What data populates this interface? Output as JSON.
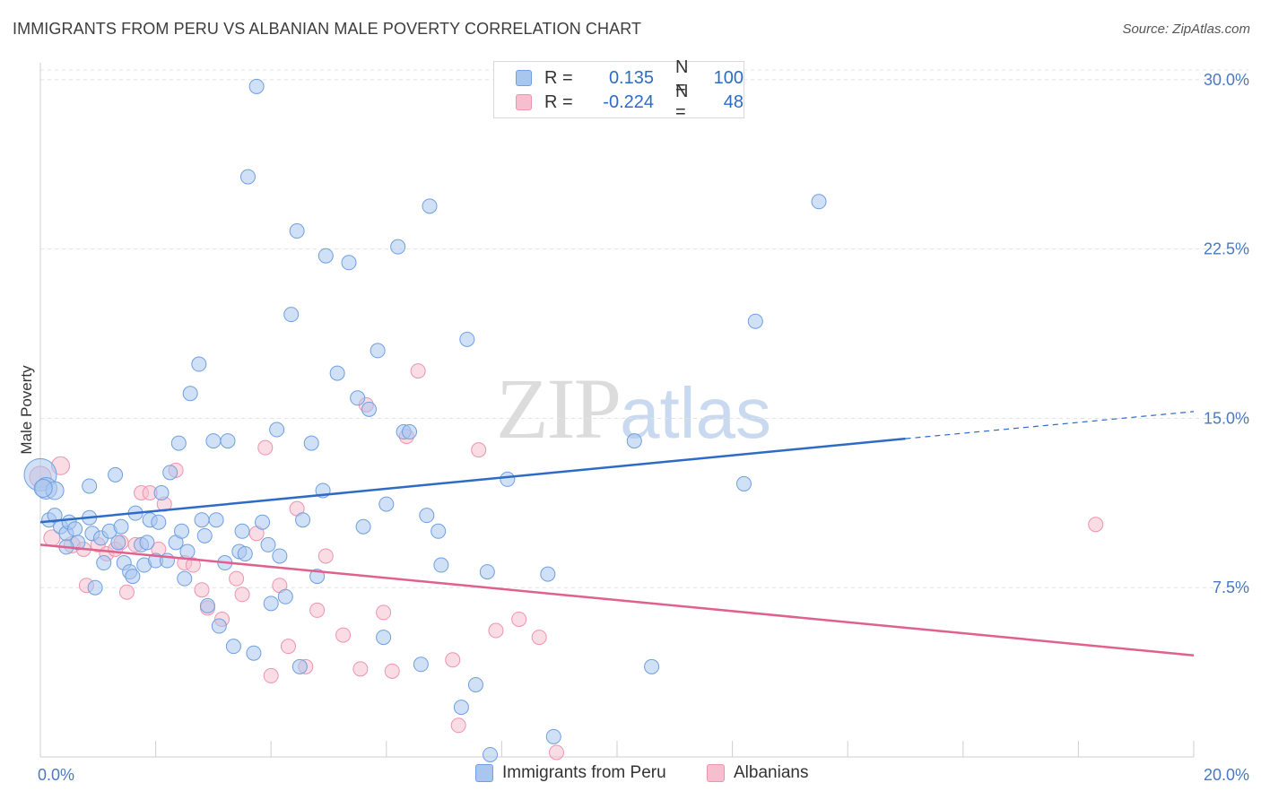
{
  "title": "IMMIGRANTS FROM PERU VS ALBANIAN MALE POVERTY CORRELATION CHART",
  "source": "Source: ZipAtlas.com",
  "watermark": {
    "zip": "ZIP",
    "atlas": "atlas"
  },
  "colors": {
    "peru_fill": "#a9c6ee",
    "peru_stroke": "#6f9fe0",
    "peru_line": "#2e6bc6",
    "alb_fill": "#f6bfd0",
    "alb_stroke": "#ee93b0",
    "alb_line": "#e0608e",
    "grid": "#e3e3e3",
    "tick_label": "#4a78c2"
  },
  "legend": {
    "rows": [
      {
        "r_label": "R =",
        "r_value": "0.135",
        "n_label": "N =",
        "n_value": "100"
      },
      {
        "r_label": "R =",
        "r_value": "-0.224",
        "n_label": "N =",
        "n_value": "48"
      }
    ]
  },
  "bottom_legend": [
    "Immigrants from Peru",
    "Albanians"
  ],
  "chart_data": {
    "type": "scatter",
    "title": "IMMIGRANTS FROM PERU VS ALBANIAN MALE POVERTY CORRELATION CHART",
    "xlabel": "",
    "ylabel": "Male Poverty",
    "xlim": [
      0,
      20
    ],
    "ylim": [
      0,
      30.75
    ],
    "x_tick_labels": [
      "0.0%",
      "20.0%"
    ],
    "y_ticks": [
      7.5,
      15.0,
      22.5,
      30.0
    ],
    "y_tick_labels": [
      "7.5%",
      "15.0%",
      "22.5%",
      "30.0%"
    ],
    "grid": "horizontal dashed",
    "legend_position": "top-center",
    "series": [
      {
        "name": "Immigrants from Peru",
        "trend": {
          "x": [
            0,
            15
          ],
          "y": [
            10.4,
            14.1
          ],
          "dashed_extension": {
            "x": [
              15,
              20
            ],
            "y": [
              14.1,
              15.3
            ]
          }
        },
        "points": [
          [
            0.0,
            12.5,
            18
          ],
          [
            0.1,
            11.9,
            12
          ],
          [
            0.25,
            11.8,
            10
          ],
          [
            0.15,
            10.5,
            8
          ],
          [
            0.25,
            10.7,
            8
          ],
          [
            0.35,
            10.2,
            8
          ],
          [
            0.45,
            9.9,
            8
          ],
          [
            0.5,
            10.4,
            8
          ],
          [
            0.6,
            10.1,
            8
          ],
          [
            0.65,
            9.5,
            8
          ],
          [
            0.45,
            9.3,
            8
          ],
          [
            0.85,
            10.6,
            8
          ],
          [
            0.9,
            9.9,
            8
          ],
          [
            0.85,
            12.0,
            8
          ],
          [
            0.95,
            7.5,
            8
          ],
          [
            1.05,
            9.7,
            8
          ],
          [
            1.1,
            8.6,
            8
          ],
          [
            1.2,
            10.0,
            8
          ],
          [
            1.3,
            12.5,
            8
          ],
          [
            1.35,
            9.5,
            8
          ],
          [
            1.4,
            10.2,
            8
          ],
          [
            1.45,
            8.6,
            8
          ],
          [
            1.55,
            8.2,
            8
          ],
          [
            1.6,
            8.0,
            8
          ],
          [
            1.65,
            10.8,
            8
          ],
          [
            1.75,
            9.4,
            8
          ],
          [
            1.8,
            8.5,
            8
          ],
          [
            1.85,
            9.5,
            8
          ],
          [
            1.9,
            10.5,
            8
          ],
          [
            2.0,
            8.7,
            8
          ],
          [
            2.05,
            10.4,
            8
          ],
          [
            2.1,
            11.7,
            8
          ],
          [
            2.2,
            8.7,
            8
          ],
          [
            2.25,
            12.6,
            8
          ],
          [
            2.35,
            9.5,
            8
          ],
          [
            2.4,
            13.9,
            8
          ],
          [
            2.45,
            10.0,
            8
          ],
          [
            2.5,
            7.9,
            8
          ],
          [
            2.55,
            9.1,
            8
          ],
          [
            2.6,
            16.1,
            8
          ],
          [
            2.75,
            17.4,
            8
          ],
          [
            2.8,
            10.5,
            8
          ],
          [
            2.85,
            9.8,
            8
          ],
          [
            2.9,
            6.7,
            8
          ],
          [
            3.0,
            14.0,
            8
          ],
          [
            3.05,
            10.5,
            8
          ],
          [
            3.1,
            5.8,
            8
          ],
          [
            3.2,
            8.6,
            8
          ],
          [
            3.25,
            14.0,
            8
          ],
          [
            3.35,
            4.9,
            8
          ],
          [
            3.45,
            9.1,
            8
          ],
          [
            3.5,
            10.0,
            8
          ],
          [
            3.55,
            9.0,
            8
          ],
          [
            3.6,
            25.7,
            8
          ],
          [
            3.7,
            4.6,
            8
          ],
          [
            3.75,
            29.7,
            8
          ],
          [
            3.85,
            10.4,
            8
          ],
          [
            3.95,
            9.4,
            8
          ],
          [
            4.0,
            6.8,
            8
          ],
          [
            4.1,
            14.5,
            8
          ],
          [
            4.15,
            8.9,
            8
          ],
          [
            4.25,
            7.1,
            8
          ],
          [
            4.35,
            19.6,
            8
          ],
          [
            4.45,
            23.3,
            8
          ],
          [
            4.5,
            4.0,
            8
          ],
          [
            4.55,
            10.5,
            8
          ],
          [
            4.7,
            13.9,
            8
          ],
          [
            4.8,
            8.0,
            8
          ],
          [
            4.9,
            11.8,
            8
          ],
          [
            4.95,
            22.2,
            8
          ],
          [
            5.15,
            17.0,
            8
          ],
          [
            5.35,
            21.9,
            8
          ],
          [
            5.5,
            15.9,
            8
          ],
          [
            5.6,
            10.2,
            8
          ],
          [
            5.7,
            15.4,
            8
          ],
          [
            5.85,
            18.0,
            8
          ],
          [
            5.95,
            5.3,
            8
          ],
          [
            6.0,
            11.2,
            8
          ],
          [
            6.2,
            22.6,
            8
          ],
          [
            6.3,
            14.4,
            8
          ],
          [
            6.4,
            14.4,
            8
          ],
          [
            6.6,
            4.1,
            8
          ],
          [
            6.7,
            10.7,
            8
          ],
          [
            6.75,
            24.4,
            8
          ],
          [
            6.9,
            10.0,
            8
          ],
          [
            6.95,
            8.5,
            8
          ],
          [
            7.3,
            2.2,
            8
          ],
          [
            7.4,
            18.5,
            8
          ],
          [
            7.55,
            3.2,
            8
          ],
          [
            7.75,
            8.2,
            8
          ],
          [
            7.8,
            0.1,
            8
          ],
          [
            8.1,
            12.3,
            8
          ],
          [
            8.8,
            8.1,
            8
          ],
          [
            8.9,
            0.9,
            8
          ],
          [
            10.3,
            14.0,
            8
          ],
          [
            10.6,
            4.0,
            8
          ],
          [
            12.2,
            12.1,
            8
          ],
          [
            12.4,
            19.3,
            8
          ],
          [
            13.5,
            24.6,
            8
          ],
          [
            0.05,
            11.9,
            10
          ]
        ]
      },
      {
        "name": "Albanians",
        "trend": {
          "x": [
            0,
            20
          ],
          "y": [
            9.4,
            4.5
          ]
        },
        "points": [
          [
            0.0,
            12.4,
            12
          ],
          [
            0.35,
            12.9,
            10
          ],
          [
            0.2,
            9.7,
            9
          ],
          [
            0.55,
            9.4,
            9
          ],
          [
            0.75,
            9.2,
            8
          ],
          [
            0.8,
            7.6,
            8
          ],
          [
            1.0,
            9.4,
            8
          ],
          [
            1.15,
            9.0,
            8
          ],
          [
            1.3,
            9.2,
            8
          ],
          [
            1.4,
            9.5,
            8
          ],
          [
            1.5,
            7.3,
            8
          ],
          [
            1.65,
            9.4,
            8
          ],
          [
            1.75,
            11.7,
            8
          ],
          [
            1.9,
            11.7,
            8
          ],
          [
            2.05,
            9.2,
            8
          ],
          [
            2.15,
            11.2,
            8
          ],
          [
            2.35,
            12.7,
            8
          ],
          [
            2.5,
            8.6,
            8
          ],
          [
            2.65,
            8.5,
            8
          ],
          [
            2.8,
            7.4,
            8
          ],
          [
            2.9,
            6.6,
            8
          ],
          [
            3.15,
            6.1,
            8
          ],
          [
            3.4,
            7.9,
            8
          ],
          [
            3.5,
            7.2,
            8
          ],
          [
            3.75,
            9.9,
            8
          ],
          [
            3.9,
            13.7,
            8
          ],
          [
            4.0,
            3.6,
            8
          ],
          [
            4.15,
            7.6,
            8
          ],
          [
            4.3,
            4.9,
            8
          ],
          [
            4.45,
            11.0,
            8
          ],
          [
            4.6,
            4.0,
            8
          ],
          [
            4.8,
            6.5,
            8
          ],
          [
            4.95,
            8.9,
            8
          ],
          [
            5.25,
            5.4,
            8
          ],
          [
            5.55,
            3.9,
            8
          ],
          [
            5.65,
            15.6,
            8
          ],
          [
            5.95,
            6.4,
            8
          ],
          [
            6.1,
            3.8,
            8
          ],
          [
            6.35,
            14.2,
            8
          ],
          [
            6.55,
            17.1,
            8
          ],
          [
            7.15,
            4.3,
            8
          ],
          [
            7.25,
            1.4,
            8
          ],
          [
            7.6,
            13.6,
            8
          ],
          [
            7.9,
            5.6,
            8
          ],
          [
            8.3,
            6.1,
            8
          ],
          [
            8.65,
            5.3,
            8
          ],
          [
            8.95,
            0.2,
            8
          ],
          [
            18.3,
            10.3,
            8
          ]
        ]
      }
    ]
  }
}
